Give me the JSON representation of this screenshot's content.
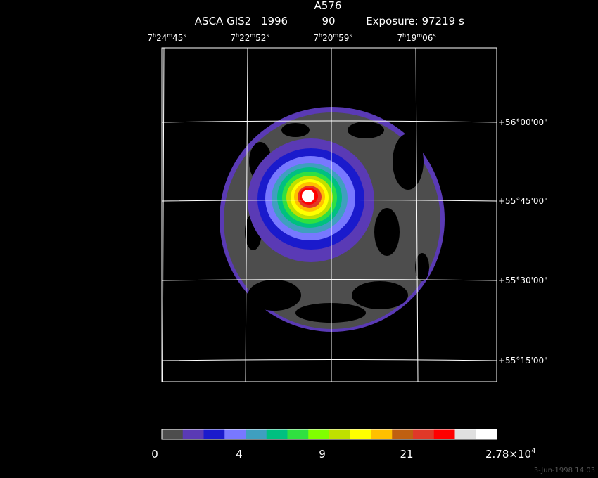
{
  "header": {
    "title": "A576",
    "instrument": "ASCA GIS2",
    "year": "1996",
    "number": "90",
    "exposure": "Exposure: 97219 s"
  },
  "ra_labels": [
    [
      "7",
      "h",
      "24",
      "m",
      "45",
      "s"
    ],
    [
      "7",
      "h",
      "22",
      "m",
      "52",
      "s"
    ],
    [
      "7",
      "h",
      "20",
      "m",
      "59",
      "s"
    ],
    [
      "7",
      "h",
      "19",
      "m",
      "06",
      "s"
    ]
  ],
  "dec_labels": [
    "+56°00'00\"",
    "+55°45'00\"",
    "+55°30'00\"",
    "+55°15'00\""
  ],
  "colorbar": {
    "colors": [
      "#4d4d4d",
      "#5a3ab5",
      "#1a1acc",
      "#7878ff",
      "#3f9fbf",
      "#00c080",
      "#30e040",
      "#80ff00",
      "#c0e000",
      "#ffff00",
      "#ffc000",
      "#c06010",
      "#e03828",
      "#ff0000",
      "#e0e0e0",
      "#ffffff"
    ],
    "labels": [
      "0",
      "4",
      "9",
      "21"
    ],
    "max_label": [
      "2.78×10",
      "4"
    ]
  },
  "timestamp": "3-Jun-1998 14:03"
}
